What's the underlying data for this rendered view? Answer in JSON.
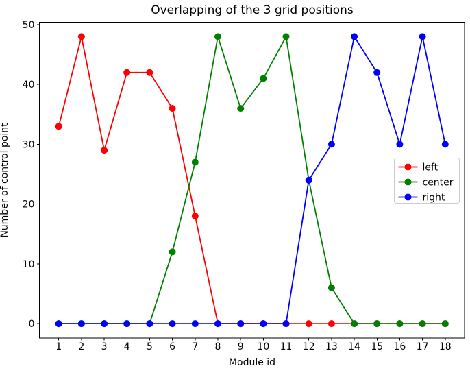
{
  "chart_data": {
    "type": "line",
    "title": "Overlapping of the 3 grid positions",
    "xlabel": "Module id",
    "ylabel": "Number of control point",
    "x": [
      1,
      2,
      3,
      4,
      5,
      6,
      7,
      8,
      9,
      10,
      11,
      12,
      13,
      14,
      15,
      16,
      17,
      18
    ],
    "series": [
      {
        "name": "left",
        "color": "#ff0000",
        "values": [
          33,
          48,
          29,
          42,
          42,
          36,
          18,
          0,
          0,
          0,
          0,
          0,
          0,
          0,
          0,
          0,
          0,
          0
        ]
      },
      {
        "name": "center",
        "color": "#008000",
        "values": [
          0,
          0,
          0,
          0,
          0,
          12,
          27,
          48,
          36,
          41,
          48,
          24,
          6,
          0,
          0,
          0,
          0,
          0
        ]
      },
      {
        "name": "right",
        "color": "#0000ff",
        "values": [
          0,
          0,
          0,
          0,
          0,
          0,
          0,
          0,
          0,
          0,
          0,
          24,
          30,
          48,
          42,
          30,
          48,
          30
        ]
      }
    ],
    "xticks": [
      "1",
      "2",
      "3",
      "4",
      "5",
      "6",
      "7",
      "8",
      "9",
      "10",
      "11",
      "12",
      "13",
      "14",
      "15",
      "16",
      "17",
      "18"
    ],
    "yticks": [
      "0",
      "10",
      "20",
      "30",
      "40",
      "50"
    ],
    "ytick_values": [
      0,
      10,
      20,
      30,
      40,
      50
    ],
    "xlim": [
      0.15,
      18.85
    ],
    "ylim": [
      -2.4,
      50.4
    ],
    "grid": false,
    "legend_position": "center right",
    "legend_labels": [
      "left",
      "center",
      "right"
    ],
    "legend_border_color": "#cccccc",
    "axis_color": "#000000",
    "background_color": "#ffffff"
  }
}
